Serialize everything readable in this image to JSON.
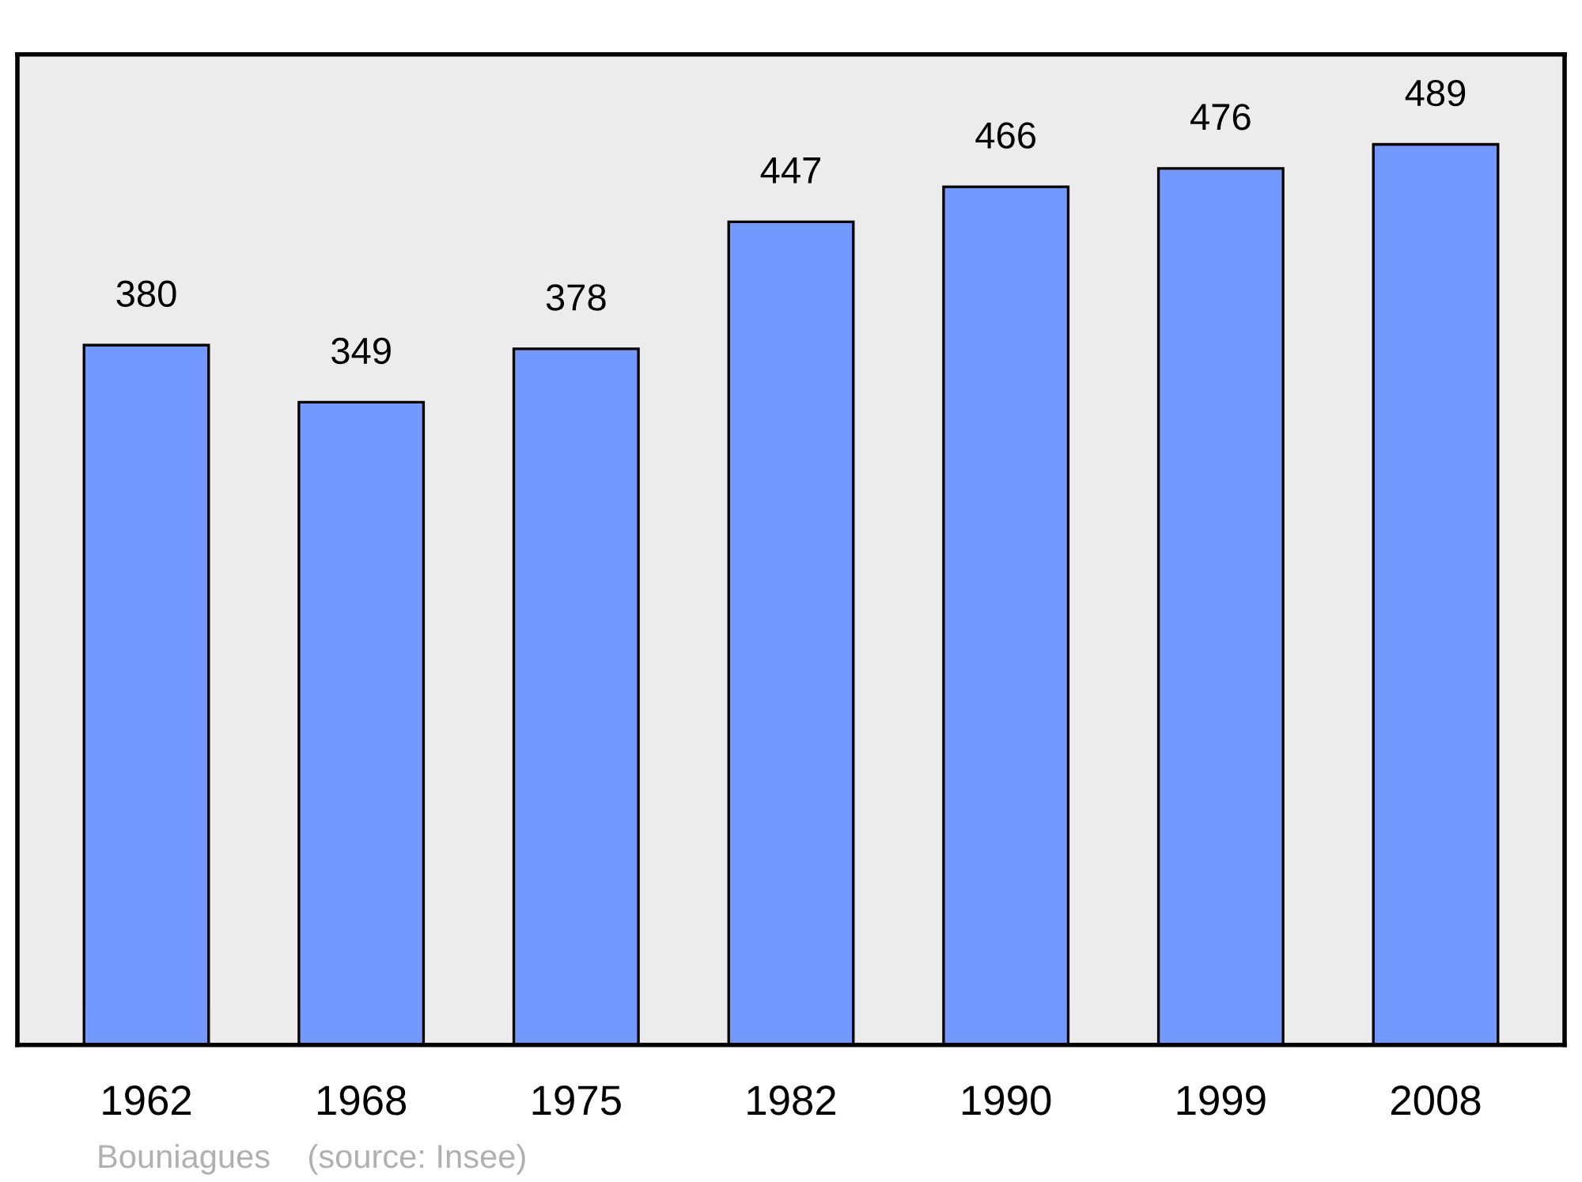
{
  "chart_data": {
    "type": "bar",
    "categories": [
      "1962",
      "1968",
      "1975",
      "1982",
      "1990",
      "1999",
      "2008"
    ],
    "values": [
      380,
      349,
      378,
      447,
      466,
      476,
      489
    ],
    "color": "#7399ff",
    "data_labels": true,
    "tick_labels": "x",
    "grid": false,
    "annotations": [
      "Bouniagues    (source: Insee)"
    ]
  }
}
